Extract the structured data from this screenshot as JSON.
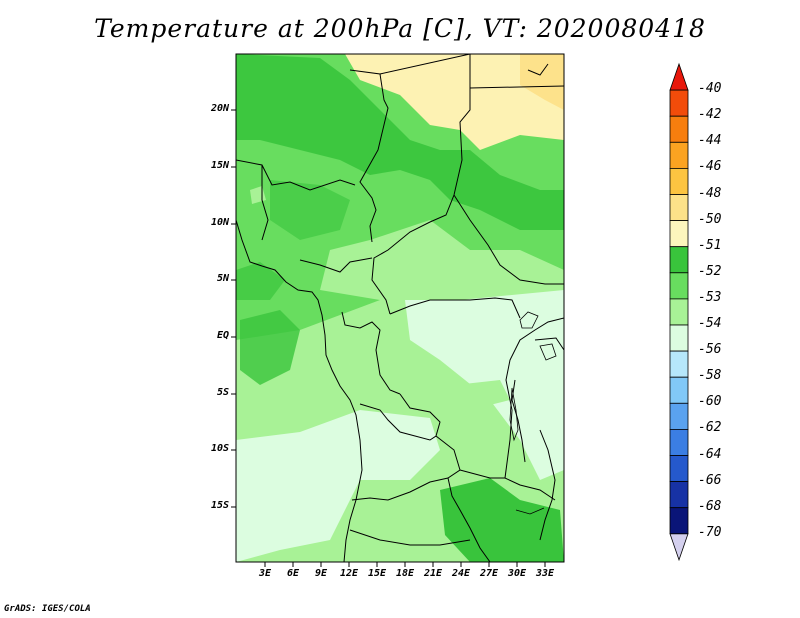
{
  "title": "Temperature at 200hPa [C], VT: 2020080418",
  "credit": "GrADS: IGES/COLA",
  "map": {
    "lat_labels": [
      "20N",
      "15N",
      "10N",
      "5N",
      "EQ",
      "5S",
      "10S",
      "15S"
    ],
    "lon_labels": [
      "3E",
      "6E",
      "9E",
      "12E",
      "15E",
      "18E",
      "21E",
      "24E",
      "27E",
      "30E",
      "33E"
    ]
  },
  "colorbar": {
    "labels": [
      "-40",
      "-42",
      "-44",
      "-46",
      "-48",
      "-50",
      "-51",
      "-52",
      "-53",
      "-54",
      "-56",
      "-58",
      "-60",
      "-62",
      "-64",
      "-66",
      "-68",
      "-70"
    ],
    "colors": [
      "#e8170b",
      "#f24c0a",
      "#f77e0e",
      "#fba321",
      "#fcc441",
      "#fde289",
      "#fdf6bd",
      "#39c43c",
      "#68dd5f",
      "#a8f296",
      "#dcfde0",
      "#b6e7fb",
      "#81c8f7",
      "#5aa2ef",
      "#3b7ee3",
      "#2559cc",
      "#1732a5",
      "#0a1578",
      "#d4d0ee"
    ]
  },
  "colors": {
    "warm_north": "#fdf2b3",
    "warm_north_deep": "#fde28b",
    "green_dark": "#39c43c",
    "green_mid": "#68dd5f",
    "green_light": "#a8f296",
    "pale_cyan": "#dcfde0"
  }
}
